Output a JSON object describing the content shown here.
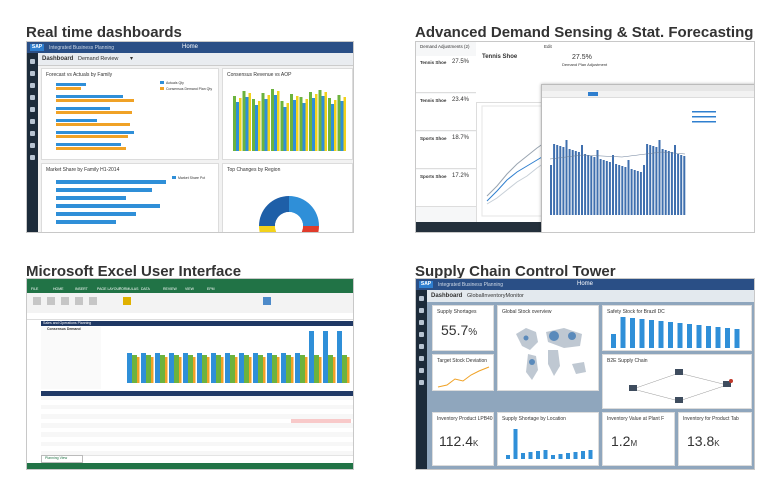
{
  "quadrants": {
    "q1": {
      "title": "Real time dashboards"
    },
    "q2": {
      "title": "Advanced Demand Sensing & Stat. Forecasting"
    },
    "q3": {
      "title": "Microsoft Excel User Interface"
    },
    "q4": {
      "title": "Supply Chain Control Tower"
    }
  },
  "dashboard": {
    "sap_logo": "SAP",
    "app_name": "Integrated Business Planning",
    "home_title": "Home",
    "view_label": "Dashboard",
    "view_selector": "Demand Review",
    "cards": [
      {
        "title": "Forecast vs Actuals by Family"
      },
      {
        "title": "Consensus Revenue vs AOP"
      },
      {
        "title": "Market Share by Family H1-2014"
      },
      {
        "title": "Top Changes by Region"
      }
    ],
    "legend_actuals": "Actuals Qty",
    "legend_consensus": "Consensus Demand Plan Qty",
    "legend_market": "Market Share Pct"
  },
  "forecast": {
    "window_title": "Demand Adjustments (2)",
    "edit_label": "Edit",
    "list": [
      {
        "name": "Tennis Shoe",
        "pct": "27.5%"
      },
      {
        "name": "Tennis Shoe",
        "pct": "23.4%"
      },
      {
        "name": "Sports Shoe",
        "pct": "18.7%"
      },
      {
        "name": "Sports Shoe",
        "pct": "17.2%"
      }
    ],
    "detail_name": "Tennis Shoe",
    "detail_pct": "27.5%",
    "detail_sub": "Demand Plan Adjustment"
  },
  "excel": {
    "planning_title": "Sales and Operations Planning",
    "consensus_title": "Consensus Demand",
    "sheet_tab": "Planning View",
    "menu": [
      "FILE",
      "HOME",
      "INSERT",
      "PAGE LAYOUT",
      "FORMULAS",
      "DATA",
      "REVIEW",
      "VIEW",
      "EPM"
    ]
  },
  "tower": {
    "sap_logo": "SAP",
    "app_name": "Integrated Business Planning",
    "home_title": "Home",
    "view_label": "Dashboard",
    "view_selector": "GlobalInventoryMonitor",
    "cards": [
      {
        "title": "Supply Shortages",
        "value": "55.7",
        "unit": "%"
      },
      {
        "title": "Global Stock overview"
      },
      {
        "title": "Safety Stock for Brazil DC"
      },
      {
        "title": "Target Stock Deviation"
      },
      {
        "title": "B2E Supply Chain"
      },
      {
        "title": "Inventory Product LPB40",
        "value": "112.4",
        "unit": "K"
      },
      {
        "title": "Supply Shortage by Location"
      },
      {
        "title": "Inventory Value at Plant F",
        "value": "1.2",
        "unit": "M"
      },
      {
        "title": "Inventory for Product Tab",
        "value": "13.8",
        "unit": "K"
      }
    ]
  },
  "colors": {
    "sap_blue": "#2a4f86",
    "bar_blue": "#2f8fd8",
    "bar_orange": "#f0a226",
    "bar_green": "#6cb33e",
    "excel_green": "#217346",
    "tower_value": "#333333"
  }
}
